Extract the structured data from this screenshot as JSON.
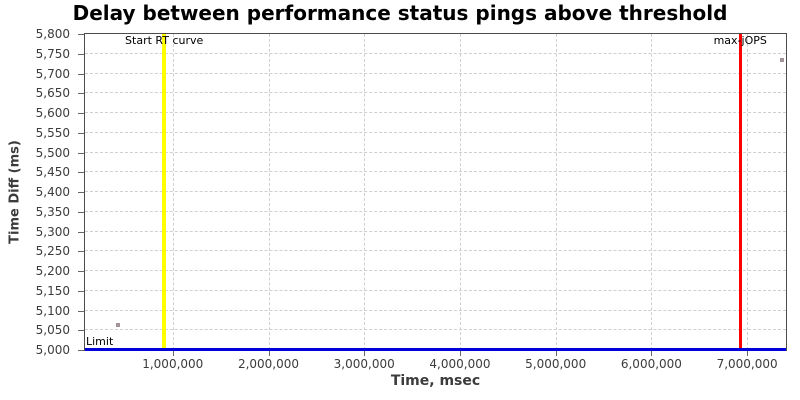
{
  "chart_data": {
    "type": "scatter",
    "title": "Delay between performance status pings above threshold",
    "xlabel": "Time, msec",
    "ylabel": "Time Diff (ms)",
    "xlim": [
      83000,
      7406000
    ],
    "ylim": [
      5000,
      5800
    ],
    "x_ticks": [
      1000000,
      2000000,
      3000000,
      4000000,
      5000000,
      6000000,
      7000000
    ],
    "y_ticks": [
      5000,
      5050,
      5100,
      5150,
      5200,
      5250,
      5300,
      5350,
      5400,
      5450,
      5500,
      5550,
      5600,
      5650,
      5700,
      5750,
      5800
    ],
    "grid": "dashed",
    "legend": "none",
    "points": [
      {
        "x": 430000,
        "y": 5063
      },
      {
        "x": 7365000,
        "y": 5735
      }
    ],
    "marker": {
      "shape": "square",
      "size": 4,
      "color": "#a5939b"
    },
    "annotations": {
      "vlines": [
        {
          "label": "Start RT curve",
          "x": 910000,
          "color": "#ffff00",
          "width": 4
        },
        {
          "label": "max-jOPS",
          "x": 6928000,
          "color": "#ff0000",
          "width": 3
        }
      ],
      "hlines": [
        {
          "label": "Limit",
          "y": 5000,
          "color": "#0000dd",
          "width": 3
        }
      ]
    },
    "colors": {
      "grid": "#cfcfcf",
      "border": "#4d4d4d",
      "tick": "#666666",
      "tick_label": "#3c3c3c",
      "axis_title": "#3c3c3c",
      "title": "#000000",
      "background": "#ffffff"
    }
  }
}
